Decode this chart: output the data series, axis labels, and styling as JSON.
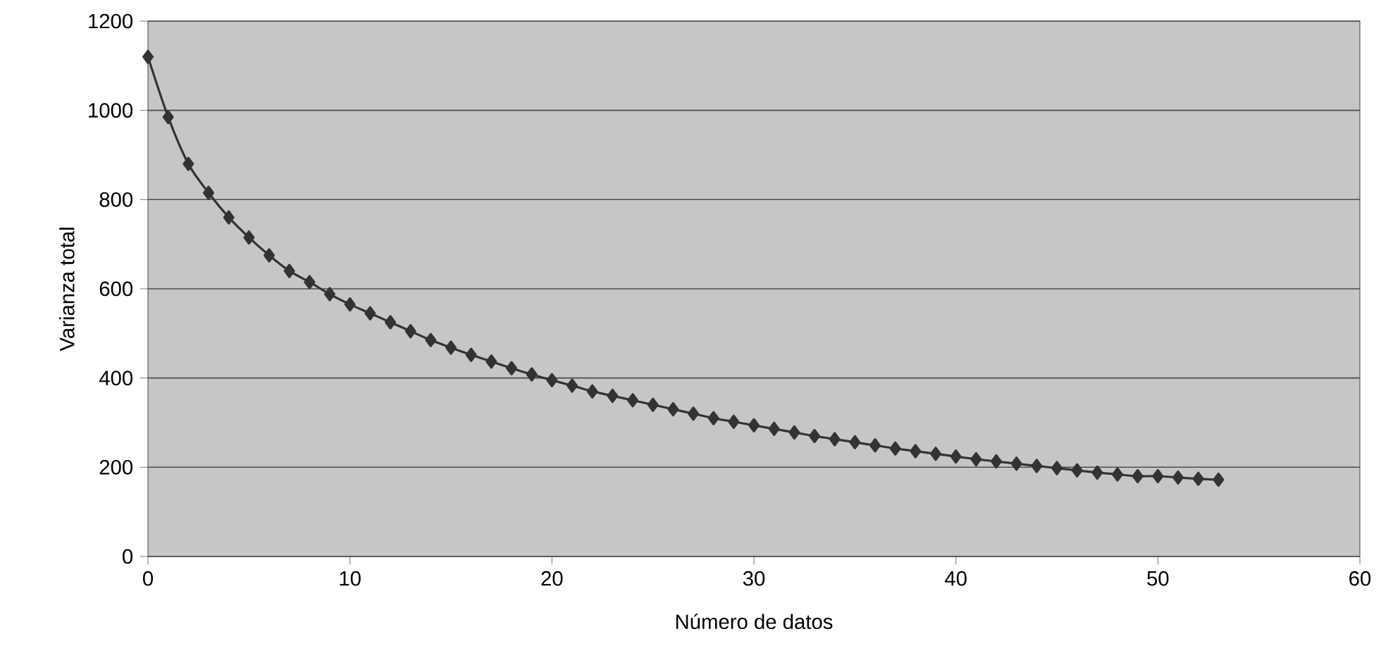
{
  "chart_data": {
    "type": "line",
    "xlabel": "Número de datos",
    "ylabel": "Varianza total",
    "x": [
      0,
      1,
      2,
      3,
      4,
      5,
      6,
      7,
      8,
      9,
      10,
      11,
      12,
      13,
      14,
      15,
      16,
      17,
      18,
      19,
      20,
      21,
      22,
      23,
      24,
      25,
      26,
      27,
      28,
      29,
      30,
      31,
      32,
      33,
      34,
      35,
      36,
      37,
      38,
      39,
      40,
      41,
      42,
      43,
      44,
      45,
      46,
      47,
      48,
      49,
      50,
      51,
      52,
      53
    ],
    "series": [
      {
        "color": "#333333",
        "values": [
          1120,
          985,
          880,
          815,
          760,
          715,
          675,
          640,
          615,
          588,
          565,
          545,
          525,
          505,
          485,
          468,
          452,
          437,
          422,
          408,
          395,
          383,
          370,
          360,
          350,
          340,
          330,
          320,
          310,
          302,
          294,
          286,
          278,
          270,
          263,
          256,
          249,
          242,
          236,
          230,
          224,
          218,
          213,
          208,
          203,
          198,
          193,
          188,
          184,
          180,
          180,
          177,
          174,
          172
        ]
      }
    ],
    "xlim": [
      0,
      60
    ],
    "xticks": [
      0,
      10,
      20,
      30,
      40,
      50,
      60
    ],
    "ylim": [
      0,
      1200
    ],
    "yticks": [
      0,
      200,
      400,
      600,
      800,
      1000,
      1200
    ],
    "grid": "y",
    "marker": "diamond",
    "line_style": "solid"
  }
}
